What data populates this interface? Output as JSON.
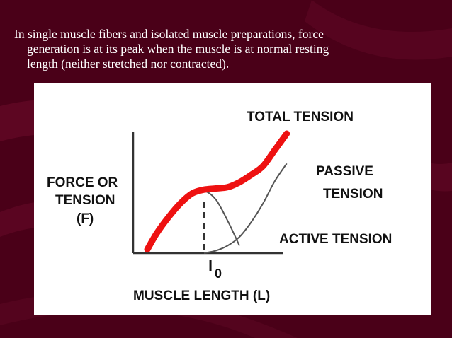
{
  "slide": {
    "caption_lines": [
      "In single muscle fibers and isolated muscle preparations, force",
      "generation is at its peak when the muscle is at normal resting",
      "length (neither stretched nor contracted)."
    ],
    "colors": {
      "background": "#4a0018",
      "text": "#ffffff",
      "total": "#ee1111",
      "curves": "#555555"
    }
  },
  "chart_data": {
    "type": "line",
    "title": "",
    "ylabel_lines": [
      "FORCE OR",
      "TENSION",
      "(F)"
    ],
    "xlabel": "MUSCLE LENGTH (L)",
    "x_marker": {
      "label": "l",
      "subscript": "0",
      "x": 0
    },
    "xlim": [
      -3,
      4.5
    ],
    "ylim": [
      0,
      10
    ],
    "grid": false,
    "series": [
      {
        "name": "TOTAL TENSION",
        "color": "#ee1111",
        "x": [
          -2.4,
          -2.0,
          -1.5,
          -1.0,
          -0.5,
          0.0,
          0.5,
          1.0,
          1.5,
          2.0,
          2.5,
          3.0,
          3.5
        ],
        "y": [
          0.3,
          1.6,
          2.9,
          4.0,
          4.8,
          5.1,
          5.2,
          5.3,
          5.7,
          6.3,
          7.0,
          8.3,
          9.6
        ]
      },
      {
        "name": "PASSIVE TENSION",
        "color": "#555555",
        "x": [
          0.0,
          0.5,
          1.0,
          1.5,
          2.0,
          2.5,
          3.0,
          3.5
        ],
        "y": [
          0.0,
          0.2,
          0.6,
          1.3,
          2.5,
          4.0,
          5.8,
          7.2
        ]
      },
      {
        "name": "ACTIVE TENSION",
        "color": "#555555",
        "x": [
          -1.5,
          -1.0,
          -0.5,
          0.0,
          0.5,
          1.0,
          1.5
        ],
        "y": [
          2.6,
          3.8,
          4.7,
          5.0,
          4.3,
          2.6,
          0.6
        ]
      }
    ],
    "annotations": [
      {
        "lines": [
          "TOTAL TENSION"
        ],
        "series": "TOTAL TENSION"
      },
      {
        "lines": [
          "PASSIVE",
          "TENSION"
        ],
        "series": "PASSIVE TENSION"
      },
      {
        "lines": [
          "ACTIVE TENSION"
        ],
        "series": "ACTIVE TENSION"
      }
    ]
  }
}
